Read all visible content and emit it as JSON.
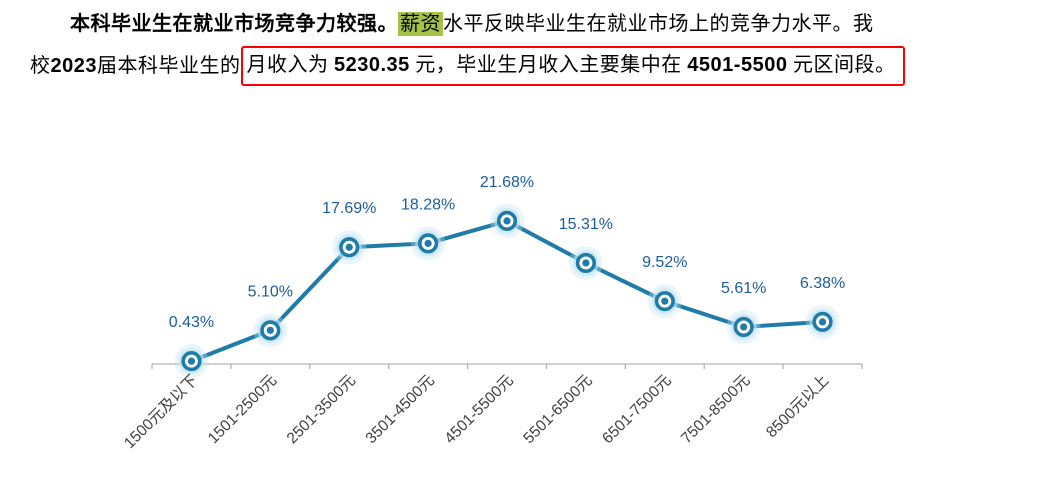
{
  "document": {
    "highlight_color": "#a6c146",
    "box_color": "#ff0000",
    "paragraph": {
      "bold_lead": "本科毕业生在就业市场竞争力较强。",
      "highlighted_word": "薪资",
      "line1_rest": "水平反映毕业生在就业市场上的竞争力水平。我",
      "line2_pre1": "校 ",
      "line2_year": "2023",
      "line2_pre2": " 届本科毕业生的",
      "boxed": {
        "part1": "月收入为 ",
        "num1": "5230.35",
        "part2": " 元，毕业生月收入主要集中在 ",
        "num2": "4501-5500",
        "part3": " 元区间段。"
      }
    }
  },
  "chart_data": {
    "type": "line",
    "title": "",
    "xlabel": "",
    "ylabel": "",
    "categories": [
      "1500元及以下",
      "1501-2500元",
      "2501-3500元",
      "3501-4500元",
      "4501-5500元",
      "5501-6500元",
      "6501-7500元",
      "7501-8500元",
      "8500元以上"
    ],
    "values": [
      0.43,
      5.1,
      17.69,
      18.28,
      21.68,
      15.31,
      9.52,
      5.61,
      6.38
    ],
    "labels": [
      "0.43%",
      "5.10%",
      "17.69%",
      "18.28%",
      "21.68%",
      "15.31%",
      "9.52%",
      "5.61%",
      "6.38%"
    ],
    "ylim": [
      0,
      25
    ],
    "grid": false,
    "legend": false,
    "line_color": "#1f7ca8",
    "marker_glow": "#bfe3f4",
    "label_color": "#1d5c9e",
    "axis_color": "#b3b3b3",
    "tick_label_color": "#3f3f3f"
  }
}
